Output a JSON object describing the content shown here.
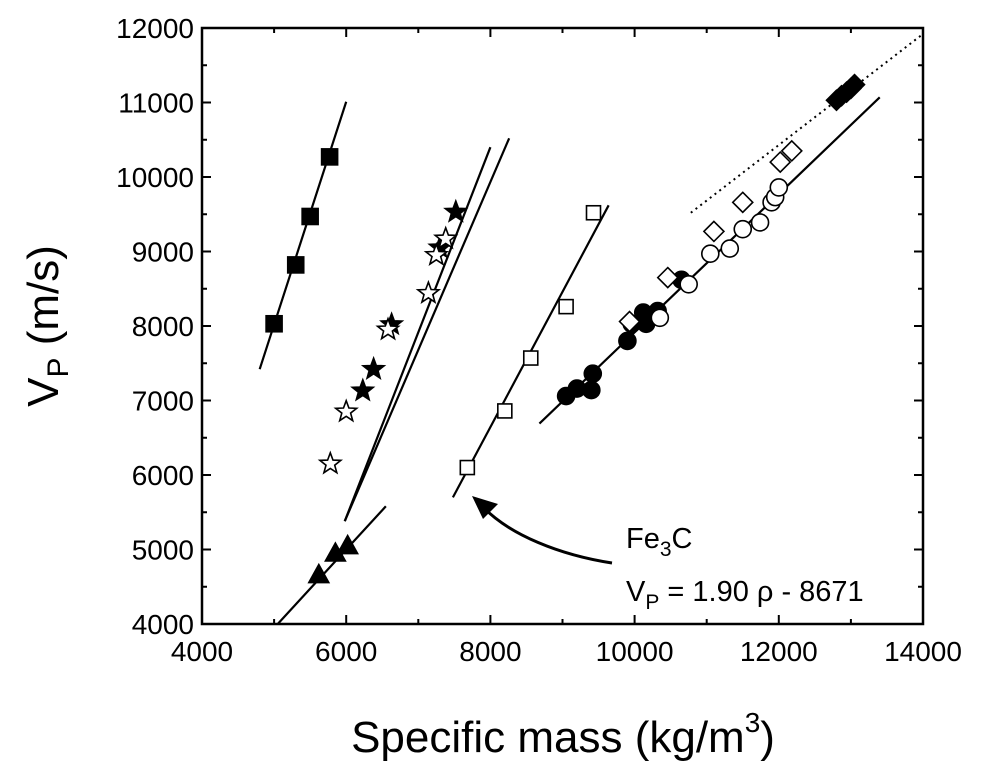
{
  "chart_data": {
    "type": "scatter",
    "xlabel": "Specific mass (kg/m",
    "xlabel_sup": "3",
    "xlabel_tail": ")",
    "ylabel_main": "V",
    "ylabel_sub": "P",
    "ylabel_tail": " (m/s)",
    "xlim": [
      4000,
      14000
    ],
    "ylim": [
      4000,
      12000
    ],
    "x_ticks": [
      4000,
      6000,
      8000,
      10000,
      12000,
      14000
    ],
    "y_ticks": [
      4000,
      5000,
      6000,
      7000,
      8000,
      9000,
      10000,
      11000,
      12000
    ],
    "x_tick_labels": [
      "4000",
      "6000",
      "8000",
      "10000",
      "12000",
      "14000"
    ],
    "y_tick_labels": [
      "4000",
      "5000",
      "6000",
      "7000",
      "8000",
      "9000",
      "10000",
      "11000",
      "12000"
    ],
    "grid": false,
    "series": [
      {
        "marker": "square",
        "fill": "black",
        "points": [
          [
            5000,
            8030
          ],
          [
            5300,
            8820
          ],
          [
            5500,
            9470
          ],
          [
            5770,
            10270
          ]
        ]
      },
      {
        "marker": "star",
        "fill": "black",
        "points": [
          [
            6230,
            7130
          ],
          [
            6380,
            7420
          ],
          [
            6630,
            8020
          ],
          [
            7300,
            9050
          ],
          [
            7520,
            9530
          ]
        ]
      },
      {
        "marker": "star",
        "fill": "white",
        "points": [
          [
            5780,
            6150
          ],
          [
            6000,
            6850
          ],
          [
            6580,
            7950
          ],
          [
            7140,
            8440
          ],
          [
            7250,
            8950
          ],
          [
            7380,
            9170
          ]
        ]
      },
      {
        "marker": "triangle",
        "fill": "black",
        "points": [
          [
            5620,
            4650
          ],
          [
            5850,
            4940
          ],
          [
            6020,
            5040
          ]
        ]
      },
      {
        "marker": "square",
        "fill": "white",
        "points": [
          [
            7680,
            6100
          ],
          [
            8200,
            6860
          ],
          [
            8560,
            7570
          ],
          [
            9050,
            8260
          ],
          [
            9430,
            9520
          ]
        ]
      },
      {
        "marker": "circle",
        "fill": "black",
        "points": [
          [
            9050,
            7060
          ],
          [
            9200,
            7160
          ],
          [
            9400,
            7140
          ],
          [
            9420,
            7360
          ],
          [
            9900,
            7800
          ],
          [
            9960,
            8030
          ],
          [
            10120,
            8180
          ],
          [
            10160,
            8030
          ],
          [
            10320,
            8200
          ],
          [
            10650,
            8620
          ]
        ]
      },
      {
        "marker": "circle",
        "fill": "white",
        "points": [
          [
            10350,
            8110
          ],
          [
            10750,
            8560
          ],
          [
            11050,
            8970
          ],
          [
            11320,
            9040
          ],
          [
            11500,
            9300
          ],
          [
            11740,
            9390
          ],
          [
            11900,
            9660
          ],
          [
            11950,
            9730
          ],
          [
            12000,
            9860
          ]
        ]
      },
      {
        "marker": "diamond",
        "fill": "white",
        "points": [
          [
            9930,
            8060
          ],
          [
            10460,
            8650
          ],
          [
            11100,
            9270
          ],
          [
            11500,
            9660
          ],
          [
            12020,
            10200
          ],
          [
            12180,
            10350
          ]
        ]
      },
      {
        "marker": "diamond",
        "fill": "black",
        "points": [
          [
            12800,
            11030
          ],
          [
            12870,
            11090
          ],
          [
            12940,
            11140
          ],
          [
            13000,
            11190
          ],
          [
            13050,
            11240
          ]
        ]
      }
    ],
    "fit_lines": [
      {
        "style": "solid",
        "from": [
          4800,
          7420
        ],
        "to": [
          6000,
          11010
        ]
      },
      {
        "style": "solid",
        "from": [
          5980,
          5380
        ],
        "to": [
          8000,
          10400
        ]
      },
      {
        "style": "solid",
        "from": [
          5980,
          5380
        ],
        "to": [
          8260,
          10520
        ]
      },
      {
        "style": "solid",
        "from": [
          5050,
          4000
        ],
        "to": [
          6550,
          5580
        ]
      },
      {
        "style": "solid",
        "from": [
          7480,
          5700
        ],
        "to": [
          9640,
          9620
        ]
      },
      {
        "style": "solid",
        "from": [
          8680,
          6690
        ],
        "to": [
          13400,
          11070
        ]
      },
      {
        "style": "dotted",
        "from": [
          10780,
          9520
        ],
        "to": [
          14000,
          11920
        ]
      }
    ],
    "annotation": {
      "formula_name": "Fe",
      "formula_sub": "3",
      "formula_tail": "C",
      "eq_lhs": "V",
      "eq_lhs_sub": "P",
      "eq_rhs": " = 1.90 ρ - 8671",
      "arrow_target": [
        7780,
        5700
      ]
    }
  }
}
